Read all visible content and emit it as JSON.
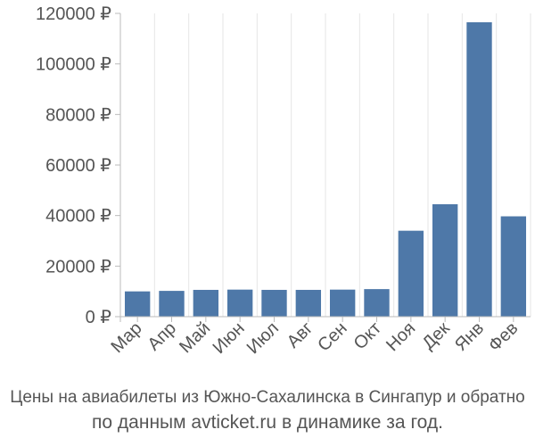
{
  "chart_data": {
    "type": "bar",
    "categories": [
      "Мар",
      "Апр",
      "Май",
      "Июн",
      "Июл",
      "Авг",
      "Сен",
      "Окт",
      "Ноя",
      "Дек",
      "Янв",
      "Фев"
    ],
    "values": [
      10000,
      10200,
      10600,
      10700,
      10600,
      10600,
      10700,
      10900,
      34000,
      44500,
      116500,
      39700
    ],
    "ylim": [
      0,
      120000
    ],
    "y_ticks": [
      0,
      20000,
      40000,
      60000,
      80000,
      100000,
      120000
    ],
    "y_tick_labels": [
      "0 ₽",
      "20000 ₽",
      "40000 ₽",
      "60000 ₽",
      "80000 ₽",
      "100000 ₽",
      "120000 ₽"
    ],
    "grid": "vertical",
    "bar_color": "#4e78a8"
  },
  "caption": {
    "line1": "Цены на авиабилеты из Южно-Сахалинска в Сингапур и обратно",
    "line2": "по данным avticket.ru в динамике за год."
  }
}
